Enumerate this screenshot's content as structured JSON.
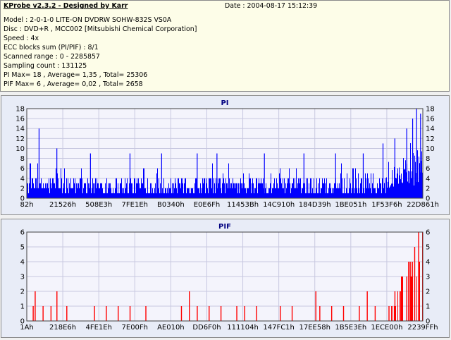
{
  "header": {
    "title": "KProbe v2.3.2 - Designed by Karr",
    "date": "Date : 2004-08-17 15:12:39",
    "lines": [
      "Model : 2-0-1-0 LITE-ON DVDRW SOHW-832S  VS0A",
      "Disc : DVD+R , MCC002 [Mitsubishi Chemical Corporation]",
      "Speed : 4x",
      "ECC blocks sum (PI/PIF) : 8/1",
      "Scanned range : 0 - 2285857",
      "Sampling count : 131125",
      "PI Max= 18 , Average= 1,35 , Total= 25306",
      "PIF Max= 6 , Average= 0,02 , Total= 2658"
    ]
  },
  "colors": {
    "pi_bars": "#0000ff",
    "pif_bars": "#ff0000",
    "plot_bg": "#f4f4fc",
    "grid": "#c8c8e0",
    "info_bg": "#fdfde8"
  },
  "chart_data": [
    {
      "type": "bar",
      "title": "PI",
      "ylim": [
        0,
        18
      ],
      "yticks": [
        0,
        2,
        4,
        6,
        8,
        10,
        12,
        14,
        16,
        18
      ],
      "xtick_labels": [
        "82h",
        "21526h",
        "508E3h",
        "7FE1Eh",
        "B0340h",
        "E0E6Fh",
        "11453Bh",
        "14C910h",
        "184D39h",
        "1BE051h",
        "1F53F6h",
        "22D861h"
      ],
      "baseline_fraction": 0.24,
      "spikes": [
        [
          0.03,
          14
        ],
        [
          0.075,
          10
        ],
        [
          0.16,
          9
        ],
        [
          0.26,
          9
        ],
        [
          0.34,
          9
        ],
        [
          0.43,
          9
        ],
        [
          0.48,
          9
        ],
        [
          0.6,
          9
        ],
        [
          0.7,
          9
        ],
        [
          0.78,
          9
        ],
        [
          0.85,
          9
        ],
        [
          0.9,
          11
        ],
        [
          0.93,
          12
        ],
        [
          0.96,
          14
        ],
        [
          0.975,
          16
        ],
        [
          0.985,
          18
        ],
        [
          0.995,
          17
        ]
      ],
      "series": [
        {
          "name": "",
          "color": "#0000ff"
        }
      ],
      "grid": true
    },
    {
      "type": "bar",
      "title": "PIF",
      "ylim": [
        0,
        6
      ],
      "yticks": [
        0,
        1,
        2,
        3,
        4,
        5,
        6
      ],
      "xtick_labels": [
        "1Ah",
        "218E6h",
        "4FE1Eh",
        "7E00Fh",
        "AE010h",
        "DD6F0h",
        "111104h",
        "147FC1h",
        "17EE58h",
        "1B5E3Eh",
        "1ECE00h",
        "2239FFh"
      ],
      "spikes": [
        [
          0.015,
          1
        ],
        [
          0.02,
          2
        ],
        [
          0.04,
          1
        ],
        [
          0.06,
          1
        ],
        [
          0.075,
          2
        ],
        [
          0.1,
          1
        ],
        [
          0.17,
          1
        ],
        [
          0.2,
          1
        ],
        [
          0.23,
          1
        ],
        [
          0.26,
          1
        ],
        [
          0.3,
          1
        ],
        [
          0.39,
          1
        ],
        [
          0.41,
          2
        ],
        [
          0.43,
          1
        ],
        [
          0.46,
          1
        ],
        [
          0.49,
          1
        ],
        [
          0.53,
          1
        ],
        [
          0.55,
          1
        ],
        [
          0.58,
          1
        ],
        [
          0.64,
          1
        ],
        [
          0.67,
          1
        ],
        [
          0.73,
          2
        ],
        [
          0.74,
          1
        ],
        [
          0.77,
          1
        ],
        [
          0.8,
          1
        ],
        [
          0.84,
          1
        ],
        [
          0.86,
          2
        ],
        [
          0.88,
          1
        ],
        [
          0.915,
          1
        ],
        [
          0.93,
          2
        ],
        [
          0.945,
          2
        ],
        [
          0.96,
          3
        ],
        [
          0.97,
          4
        ],
        [
          0.98,
          5
        ],
        [
          0.99,
          6
        ],
        [
          1.0,
          6
        ]
      ],
      "series": [
        {
          "name": "",
          "color": "#ff0000"
        }
      ],
      "grid": true
    }
  ]
}
